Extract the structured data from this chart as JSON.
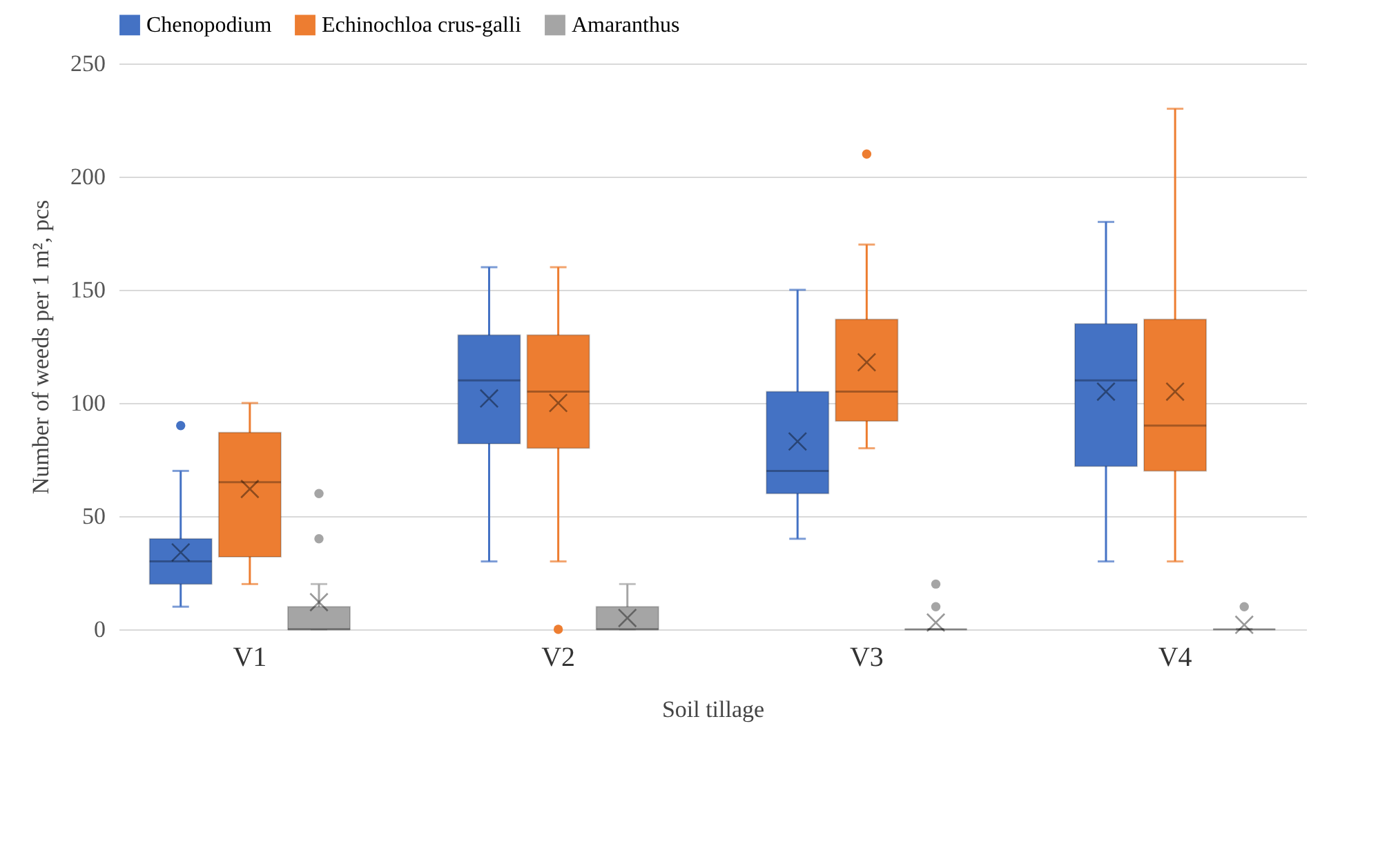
{
  "chart_data": {
    "type": "box",
    "xlabel": "Soil tillage",
    "ylabel": "Number of weeds per 1 m², pcs",
    "categories": [
      "V1",
      "V2",
      "V3",
      "V4"
    ],
    "ylim": [
      0,
      250
    ],
    "yticks": [
      0,
      50,
      100,
      150,
      200,
      250
    ],
    "grid": "y",
    "legend": "top",
    "series": [
      {
        "name": "Chenopodium",
        "color": "#4472c4",
        "boxes": [
          {
            "low": 10,
            "q1": 20,
            "median": 30,
            "q3": 40,
            "high": 70,
            "mean": 34,
            "outliers": [
              90
            ]
          },
          {
            "low": 30,
            "q1": 82,
            "median": 110,
            "q3": 130,
            "high": 160,
            "mean": 102
          },
          {
            "low": 40,
            "q1": 60,
            "median": 70,
            "q3": 105,
            "high": 150,
            "mean": 83
          },
          {
            "low": 30,
            "q1": 72,
            "median": 110,
            "q3": 135,
            "high": 180,
            "mean": 105
          }
        ]
      },
      {
        "name": "Echinochloa crus-galli",
        "color": "#ed7d31",
        "boxes": [
          {
            "low": 20,
            "q1": 32,
            "median": 65,
            "q3": 87,
            "high": 100,
            "mean": 62
          },
          {
            "low": 30,
            "q1": 80,
            "median": 105,
            "q3": 130,
            "high": 160,
            "mean": 100,
            "outliers": [
              0
            ]
          },
          {
            "low": 80,
            "q1": 92,
            "median": 105,
            "q3": 137,
            "high": 170,
            "mean": 118,
            "outliers": [
              210
            ]
          },
          {
            "low": 30,
            "q1": 70,
            "median": 90,
            "q3": 137,
            "high": 230,
            "mean": 105
          }
        ]
      },
      {
        "name": "Amaranthus",
        "color": "#a5a5a5",
        "boxes": [
          {
            "low": 0,
            "q1": 0,
            "median": 0,
            "q3": 10,
            "high": 20,
            "mean": 12,
            "outliers": [
              40,
              60
            ]
          },
          {
            "low": 0,
            "q1": 0,
            "median": 0,
            "q3": 10,
            "high": 20,
            "mean": 5
          },
          {
            "low": 0,
            "q1": 0,
            "median": 0,
            "q3": 0,
            "high": 0,
            "mean": 3,
            "outliers": [
              10,
              20
            ]
          },
          {
            "low": 0,
            "q1": 0,
            "median": 0,
            "q3": 0,
            "high": 0,
            "mean": 2,
            "outliers": [
              10
            ]
          }
        ]
      }
    ]
  }
}
